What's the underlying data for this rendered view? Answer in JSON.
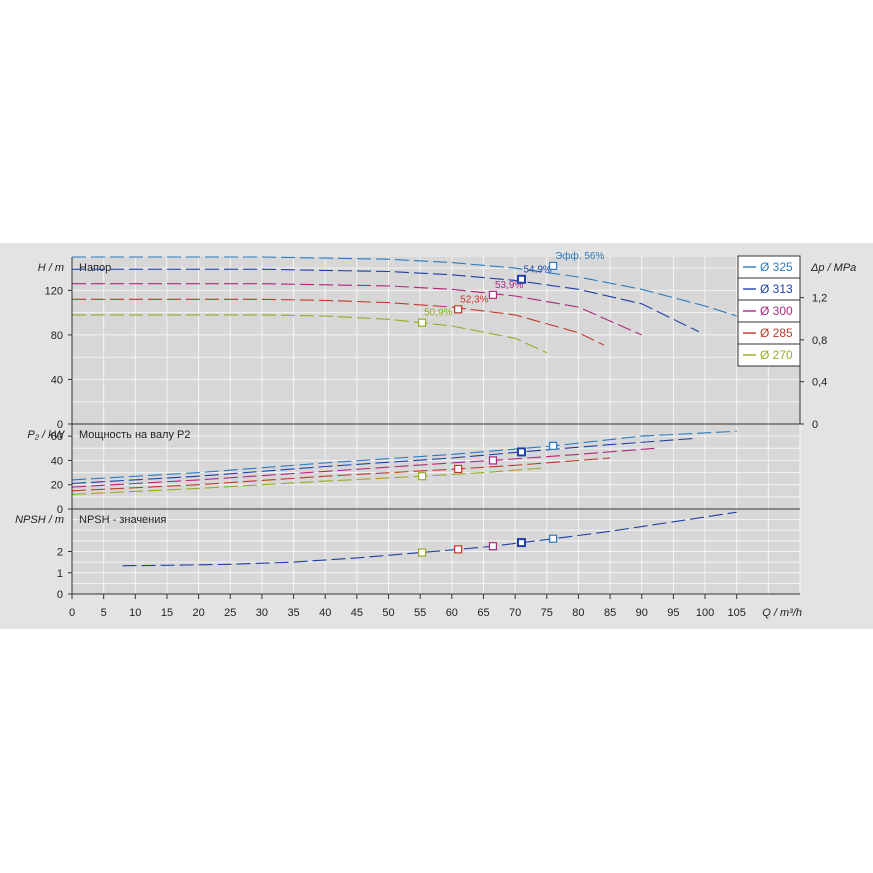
{
  "chart_data": {
    "type": "line",
    "xlabel": "Q / m³/h",
    "xlim": [
      0,
      115
    ],
    "xticks": [
      0,
      5,
      10,
      15,
      20,
      25,
      30,
      35,
      40,
      45,
      50,
      55,
      60,
      65,
      70,
      75,
      80,
      85,
      90,
      95,
      100,
      105
    ],
    "legend": [
      {
        "label": "Ø 325",
        "color": "#2a7bc0"
      },
      {
        "label": "Ø 313",
        "color": "#1f3fa8"
      },
      {
        "label": "Ø 300",
        "color": "#b0287f"
      },
      {
        "label": "Ø 285",
        "color": "#c0392b"
      },
      {
        "label": "Ø 270",
        "color": "#9aaa22"
      }
    ],
    "legend_position": "top-right",
    "head_panel": {
      "ylabel": "H / m",
      "title": "Напор",
      "ylim": [
        0,
        150
      ],
      "yticks": [
        0,
        40,
        80,
        120
      ],
      "right_axis_label": "Δp / MPa",
      "right_ticks": [
        "0",
        "0,4",
        "0,8",
        "1,2"
      ],
      "series": [
        {
          "name": "Ø 325",
          "color": "#2a7bc0",
          "x": [
            0,
            10,
            20,
            30,
            40,
            50,
            60,
            70,
            80,
            90,
            100,
            105
          ],
          "y": [
            150,
            150,
            150,
            150,
            149,
            148,
            145,
            140,
            132,
            121,
            106,
            97
          ]
        },
        {
          "name": "Ø 313",
          "color": "#1f3fa8",
          "x": [
            0,
            10,
            20,
            30,
            40,
            50,
            60,
            70,
            80,
            90,
            99
          ],
          "y": [
            139,
            139,
            139,
            139,
            138,
            137,
            134,
            129,
            121,
            108,
            83
          ]
        },
        {
          "name": "Ø 300",
          "color": "#b0287f",
          "x": [
            0,
            10,
            20,
            30,
            40,
            50,
            60,
            70,
            80,
            90
          ],
          "y": [
            126,
            126,
            126,
            126,
            125,
            124,
            121,
            115,
            105,
            80
          ]
        },
        {
          "name": "Ø 285",
          "color": "#c0392b",
          "x": [
            0,
            10,
            20,
            30,
            40,
            50,
            60,
            70,
            80,
            84
          ],
          "y": [
            112,
            112,
            112,
            112,
            111,
            109,
            105,
            98,
            82,
            71
          ]
        },
        {
          "name": "Ø 270",
          "color": "#9aaa22",
          "x": [
            0,
            10,
            20,
            30,
            40,
            50,
            60,
            70,
            75
          ],
          "y": [
            98,
            98,
            98,
            98,
            97,
            94,
            88,
            77,
            64
          ]
        }
      ],
      "points": [
        {
          "x": 55.3,
          "y": 91,
          "label": "50,9%",
          "color": "#9aaa22"
        },
        {
          "x": 61,
          "y": 103,
          "label": "52,3%",
          "color": "#c0392b"
        },
        {
          "x": 66.5,
          "y": 116,
          "label": "53,9%",
          "color": "#b0287f"
        },
        {
          "x": 71,
          "y": 130,
          "label": "54,9%",
          "color": "#1f3fa8"
        },
        {
          "x": 76,
          "y": 142,
          "label": "Эфф.  56%",
          "color": "#2a7bc0"
        }
      ]
    },
    "power_panel": {
      "ylabel": "P₂ / kW",
      "title": "Мощность на валу P2",
      "ylim": [
        0,
        70
      ],
      "yticks": [
        0,
        20,
        40,
        60
      ],
      "series": [
        {
          "name": "Ø 325",
          "color": "#2a7bc0",
          "x": [
            0,
            20,
            40,
            60,
            76,
            90,
            105
          ],
          "y": [
            24,
            30,
            38,
            45,
            52,
            60,
            64
          ]
        },
        {
          "name": "Ø 313",
          "color": "#1f3fa8",
          "x": [
            0,
            20,
            40,
            60,
            71,
            85,
            98
          ],
          "y": [
            21,
            27,
            35,
            42,
            47,
            53,
            58
          ]
        },
        {
          "name": "Ø 300",
          "color": "#b0287f",
          "x": [
            0,
            20,
            40,
            60,
            66.5,
            80,
            92
          ],
          "y": [
            18,
            24,
            31,
            38,
            40,
            45,
            50
          ]
        },
        {
          "name": "Ø 285",
          "color": "#c0392b",
          "x": [
            0,
            20,
            40,
            61,
            70,
            85
          ],
          "y": [
            15,
            20,
            27,
            33,
            36,
            42
          ]
        },
        {
          "name": "Ø 270",
          "color": "#9aaa22",
          "x": [
            0,
            20,
            40,
            55.3,
            65,
            75
          ],
          "y": [
            12,
            17,
            23,
            27,
            30,
            34
          ]
        }
      ],
      "points": [
        {
          "x": 55.3,
          "y": 27,
          "color": "#9aaa22"
        },
        {
          "x": 61,
          "y": 33,
          "color": "#c0392b"
        },
        {
          "x": 66.5,
          "y": 40,
          "color": "#b0287f"
        },
        {
          "x": 71,
          "y": 47,
          "color": "#1f3fa8"
        },
        {
          "x": 76,
          "y": 52,
          "color": "#2a7bc0"
        }
      ]
    },
    "npsh_panel": {
      "ylabel": "NPSH / m",
      "title": "NPSH - значения",
      "ylim": [
        0,
        4
      ],
      "yticks": [
        0,
        1,
        2
      ],
      "series": [
        {
          "name": "NPSH",
          "color": "#1f3fa8",
          "x": [
            8,
            15,
            25,
            35,
            45,
            55,
            61,
            66.5,
            71,
            76,
            85,
            95,
            105
          ],
          "y": [
            1.33,
            1.35,
            1.4,
            1.5,
            1.7,
            1.95,
            2.1,
            2.25,
            2.42,
            2.6,
            2.95,
            3.4,
            3.85
          ]
        }
      ],
      "points": [
        {
          "x": 55.3,
          "y": 1.95,
          "color": "#9aaa22"
        },
        {
          "x": 61,
          "y": 2.1,
          "color": "#c0392b"
        },
        {
          "x": 66.5,
          "y": 2.25,
          "color": "#b0287f"
        },
        {
          "x": 71,
          "y": 2.42,
          "color": "#1f3fa8"
        },
        {
          "x": 76,
          "y": 2.6,
          "color": "#2a7bc0"
        }
      ]
    }
  }
}
